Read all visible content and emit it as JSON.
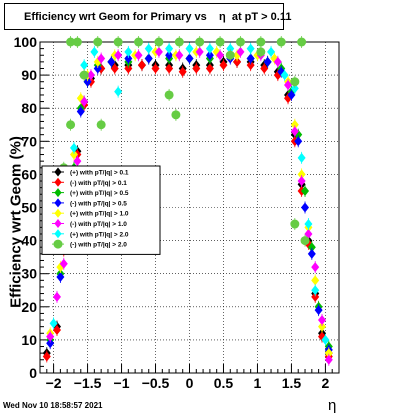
{
  "header": {
    "title": "Efficiency wrt Geom for Primary vs    η  at pT > 0.11"
  },
  "footer": {
    "timestamp": "Wed Nov 10 18:58:57 2021"
  },
  "chart_data": {
    "type": "scatter",
    "title": "Efficiency wrt Geom for Primary vs    η  at pT > 0.11",
    "xlabel": "η",
    "ylabel": "Efficiency wrt Geom (%)",
    "xlim": [
      -2.2,
      2.2
    ],
    "ylim": [
      0,
      100
    ],
    "xticks": [
      -2,
      -1.5,
      -1,
      -0.5,
      0,
      0.5,
      1,
      1.5,
      2
    ],
    "xtick_labels": [
      "−2",
      "−1.5",
      "−1",
      "−0.5",
      "0",
      "0.5",
      "1",
      "1.5",
      "2"
    ],
    "yticks": [
      0,
      10,
      20,
      30,
      40,
      50,
      60,
      70,
      80,
      90,
      100
    ],
    "ytick_labels": [
      "0",
      "10",
      "20",
      "30",
      "40",
      "50",
      "60",
      "70",
      "80",
      "90",
      "100"
    ],
    "grid": true,
    "legend_position": "middle-left",
    "series": [
      {
        "name": "(+) with pT/|q| > 0.1",
        "color": "#000000",
        "marker": "diamond",
        "points": [
          [
            -2.1,
            6
          ],
          [
            -1.95,
            14
          ],
          [
            -1.85,
            38
          ],
          [
            -1.75,
            56
          ],
          [
            -1.65,
            67
          ],
          [
            -1.55,
            82
          ],
          [
            -1.45,
            89
          ],
          [
            -1.3,
            92
          ],
          [
            -1.1,
            93
          ],
          [
            -0.9,
            93
          ],
          [
            -0.7,
            93
          ],
          [
            -0.5,
            93
          ],
          [
            -0.3,
            93
          ],
          [
            -0.1,
            92
          ],
          [
            0.1,
            93
          ],
          [
            0.3,
            93
          ],
          [
            0.5,
            94
          ],
          [
            0.7,
            94
          ],
          [
            0.9,
            94
          ],
          [
            1.1,
            93
          ],
          [
            1.3,
            91
          ],
          [
            1.45,
            84
          ],
          [
            1.55,
            72
          ],
          [
            1.65,
            57
          ],
          [
            1.75,
            40
          ],
          [
            1.85,
            24
          ],
          [
            1.95,
            12
          ],
          [
            2.05,
            6
          ]
        ]
      },
      {
        "name": "(-) with pT/|q| > 0.1",
        "color": "#ff0000",
        "marker": "diamond",
        "points": [
          [
            -2.1,
            5
          ],
          [
            -1.95,
            13
          ],
          [
            -1.85,
            37
          ],
          [
            -1.75,
            55
          ],
          [
            -1.65,
            66
          ],
          [
            -1.55,
            81
          ],
          [
            -1.45,
            88
          ],
          [
            -1.3,
            92
          ],
          [
            -1.1,
            92
          ],
          [
            -0.9,
            92
          ],
          [
            -0.7,
            93
          ],
          [
            -0.5,
            92
          ],
          [
            -0.3,
            92
          ],
          [
            -0.1,
            91
          ],
          [
            0.1,
            92
          ],
          [
            0.3,
            92
          ],
          [
            0.5,
            93
          ],
          [
            0.7,
            94
          ],
          [
            0.9,
            93
          ],
          [
            1.1,
            92
          ],
          [
            1.3,
            90
          ],
          [
            1.45,
            83
          ],
          [
            1.55,
            70
          ],
          [
            1.65,
            55
          ],
          [
            1.75,
            39
          ],
          [
            1.85,
            23
          ],
          [
            1.95,
            11
          ],
          [
            2.05,
            5
          ]
        ]
      },
      {
        "name": "(+) with pT/|q| > 0.5",
        "color": "#00bb00",
        "marker": "diamond",
        "points": [
          [
            -2.05,
            10
          ],
          [
            -1.9,
            30
          ],
          [
            -1.8,
            50
          ],
          [
            -1.7,
            62
          ],
          [
            -1.6,
            80
          ],
          [
            -1.5,
            88
          ],
          [
            -1.35,
            93
          ],
          [
            -1.15,
            94
          ],
          [
            -0.9,
            94
          ],
          [
            -0.6,
            95
          ],
          [
            -0.3,
            95
          ],
          [
            0,
            95
          ],
          [
            0.3,
            95
          ],
          [
            0.6,
            96
          ],
          [
            0.9,
            95
          ],
          [
            1.15,
            94
          ],
          [
            1.35,
            92
          ],
          [
            1.5,
            85
          ],
          [
            1.6,
            72
          ],
          [
            1.7,
            55
          ],
          [
            1.8,
            38
          ],
          [
            1.9,
            20
          ],
          [
            2.05,
            8
          ]
        ]
      },
      {
        "name": "(-) with pT/|q| > 0.5",
        "color": "#0000ff",
        "marker": "diamond",
        "points": [
          [
            -2.05,
            9
          ],
          [
            -1.9,
            29
          ],
          [
            -1.8,
            49
          ],
          [
            -1.7,
            61
          ],
          [
            -1.6,
            79
          ],
          [
            -1.5,
            88
          ],
          [
            -1.35,
            92
          ],
          [
            -1.15,
            94
          ],
          [
            -0.9,
            95
          ],
          [
            -0.6,
            95
          ],
          [
            -0.3,
            96
          ],
          [
            0,
            95
          ],
          [
            0.3,
            96
          ],
          [
            0.6,
            95
          ],
          [
            0.9,
            95
          ],
          [
            1.15,
            94
          ],
          [
            1.35,
            91
          ],
          [
            1.5,
            84
          ],
          [
            1.6,
            70
          ],
          [
            1.7,
            50
          ],
          [
            1.8,
            36
          ],
          [
            1.9,
            19
          ],
          [
            2.05,
            7
          ]
        ]
      },
      {
        "name": "(+) with pT/|q| > 1.0",
        "color": "#ffff00",
        "marker": "diamond",
        "points": [
          [
            -2.05,
            12
          ],
          [
            -1.9,
            32
          ],
          [
            -1.8,
            52
          ],
          [
            -1.7,
            66
          ],
          [
            -1.6,
            83
          ],
          [
            -1.5,
            90
          ],
          [
            -1.35,
            94
          ],
          [
            -1.1,
            96
          ],
          [
            -0.8,
            96
          ],
          [
            -0.5,
            97
          ],
          [
            -0.2,
            96
          ],
          [
            0.1,
            97
          ],
          [
            0.4,
            97
          ],
          [
            0.7,
            96
          ],
          [
            1.0,
            96
          ],
          [
            1.25,
            95
          ],
          [
            1.45,
            88
          ],
          [
            1.55,
            75
          ],
          [
            1.65,
            60
          ],
          [
            1.75,
            44
          ],
          [
            1.85,
            28
          ],
          [
            1.95,
            14
          ],
          [
            2.05,
            6
          ]
        ]
      },
      {
        "name": "(-) with pT/|q| > 1.0",
        "color": "#ff00ff",
        "marker": "diamond",
        "points": [
          [
            -2.05,
            11
          ],
          [
            -1.95,
            23
          ],
          [
            -1.85,
            33
          ],
          [
            -1.75,
            50
          ],
          [
            -1.65,
            64
          ],
          [
            -1.55,
            82
          ],
          [
            -1.45,
            90
          ],
          [
            -1.3,
            95
          ],
          [
            -1.05,
            96
          ],
          [
            -0.75,
            96
          ],
          [
            -0.45,
            97
          ],
          [
            -0.15,
            96
          ],
          [
            0.15,
            97
          ],
          [
            0.45,
            96
          ],
          [
            0.75,
            97
          ],
          [
            1.05,
            96
          ],
          [
            1.3,
            94
          ],
          [
            1.45,
            87
          ],
          [
            1.55,
            73
          ],
          [
            1.65,
            58
          ],
          [
            1.75,
            42
          ],
          [
            1.85,
            32
          ],
          [
            1.95,
            16
          ],
          [
            2.05,
            4
          ]
        ]
      },
      {
        "name": "(+) with pT/|q| > 2.0",
        "color": "#00ffff",
        "marker": "diamond",
        "points": [
          [
            -2.0,
            15
          ],
          [
            -1.85,
            40
          ],
          [
            -1.7,
            68
          ],
          [
            -1.55,
            93
          ],
          [
            -1.4,
            97
          ],
          [
            -1.05,
            85
          ],
          [
            -0.9,
            97
          ],
          [
            -0.6,
            98
          ],
          [
            -0.3,
            98
          ],
          [
            0,
            98
          ],
          [
            0.3,
            98
          ],
          [
            0.6,
            98
          ],
          [
            0.9,
            98
          ],
          [
            1.2,
            97
          ],
          [
            1.4,
            90
          ],
          [
            1.55,
            86
          ],
          [
            1.65,
            65
          ],
          [
            1.75,
            45
          ],
          [
            1.85,
            25
          ],
          [
            2.0,
            10
          ]
        ]
      },
      {
        "name": "(-) with pT/|q| > 2.0",
        "color": "#66cc44",
        "marker": "circle",
        "points": [
          [
            -1.75,
            100
          ],
          [
            -1.65,
            100
          ],
          [
            -1.35,
            100
          ],
          [
            -1.05,
            100
          ],
          [
            -0.75,
            100
          ],
          [
            -0.45,
            100
          ],
          [
            -0.15,
            100
          ],
          [
            0.15,
            100
          ],
          [
            0.45,
            100
          ],
          [
            0.75,
            100
          ],
          [
            1.05,
            100
          ],
          [
            1.35,
            100
          ],
          [
            1.65,
            100
          ],
          [
            -1.75,
            75
          ],
          [
            -1.55,
            90
          ],
          [
            -1.3,
            75
          ],
          [
            -0.3,
            84
          ],
          [
            -0.2,
            78
          ],
          [
            0.6,
            96
          ],
          [
            1.05,
            97
          ],
          [
            1.55,
            88
          ],
          [
            1.55,
            45
          ],
          [
            1.7,
            40
          ],
          [
            -1.85,
            62
          ],
          [
            -2.1,
            50
          ]
        ]
      }
    ]
  }
}
